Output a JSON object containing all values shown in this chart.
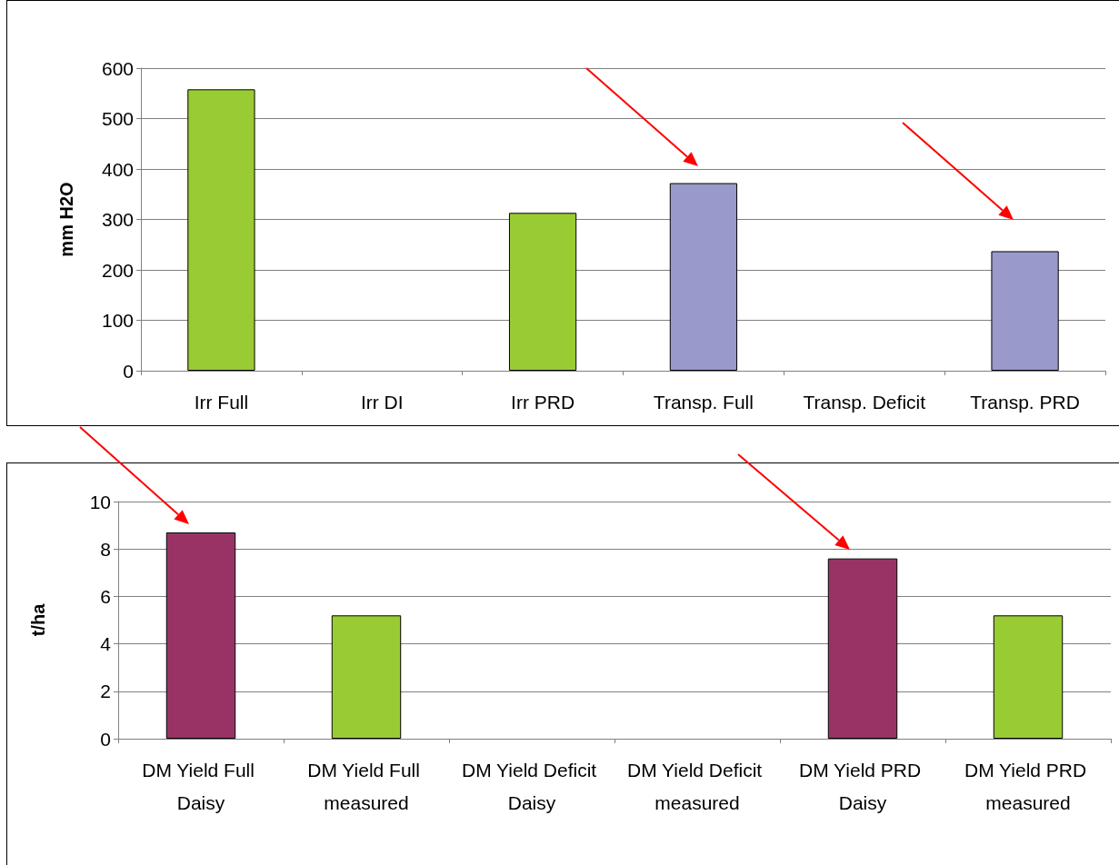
{
  "chart_data": [
    {
      "type": "bar",
      "ylabel": "mm H2O",
      "categories": [
        "Irr Full",
        "Irr DI",
        "Irr PRD",
        "Transp. Full",
        "Transp. Deficit",
        "Transp. PRD"
      ],
      "values": [
        558,
        null,
        313,
        372,
        null,
        237
      ],
      "colors": [
        "#99cc33",
        "#99cc33",
        "#99cc33",
        "#9999cc",
        "#9999cc",
        "#9999cc"
      ],
      "ylim": [
        0,
        600
      ],
      "yticks": [
        0,
        100,
        200,
        300,
        400,
        500,
        600
      ],
      "grid": "y"
    },
    {
      "type": "bar",
      "ylabel": "t/ha",
      "categories": [
        "DM Yield Full Daisy",
        "DM Yield Full measured",
        "DM Yield Deficit Daisy",
        "DM Yield Deficit measured",
        "DM Yield PRD Daisy",
        "DM Yield PRD measured"
      ],
      "values": [
        8.7,
        5.2,
        null,
        null,
        7.6,
        5.2
      ],
      "colors": [
        "#993366",
        "#99cc33",
        "#993366",
        "#99cc33",
        "#993366",
        "#99cc33"
      ],
      "ylim": [
        0,
        10
      ],
      "yticks": [
        0,
        2,
        4,
        6,
        8,
        10
      ],
      "grid": "y"
    }
  ]
}
